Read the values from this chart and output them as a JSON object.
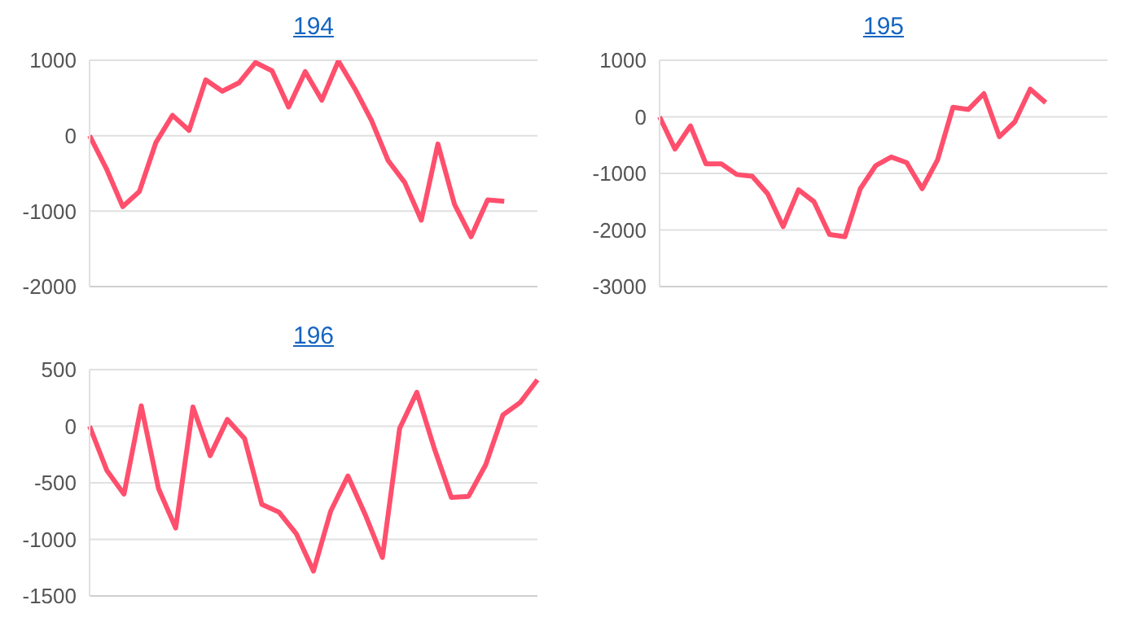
{
  "chart_data": [
    {
      "type": "line",
      "title": "194",
      "categories": [
        null,
        null,
        null,
        null,
        null,
        null,
        null,
        null,
        null,
        null,
        null,
        null,
        null,
        null,
        null,
        null,
        null,
        null,
        null,
        null,
        null,
        null,
        null,
        null,
        null,
        null,
        null,
        null
      ],
      "series": [
        {
          "color": "#ff4f6d",
          "values": [
            0,
            -430,
            -940,
            -740,
            -90,
            270,
            70,
            740,
            590,
            700,
            970,
            860,
            380,
            850,
            470,
            990,
            620,
            200,
            -330,
            -620,
            -1120,
            -110,
            -910,
            -1340,
            -850,
            -870,
            null,
            null
          ]
        }
      ],
      "ylim": [
        -2000,
        1000
      ],
      "yticks": [
        -2000,
        -1000,
        0,
        1000
      ],
      "grid": "y",
      "marker": "none",
      "line_style": "solid",
      "tick_labels": "y"
    },
    {
      "type": "line",
      "title": "195",
      "categories": [
        null,
        null,
        null,
        null,
        null,
        null,
        null,
        null,
        null,
        null,
        null,
        null,
        null,
        null,
        null,
        null,
        null,
        null,
        null,
        null,
        null,
        null,
        null,
        null,
        null,
        null,
        null,
        null,
        null,
        null
      ],
      "series": [
        {
          "color": "#ff4f6d",
          "values": [
            0,
            -570,
            -160,
            -830,
            -830,
            -1020,
            -1050,
            -1360,
            -1940,
            -1290,
            -1500,
            -2080,
            -2120,
            -1270,
            -860,
            -710,
            -810,
            -1270,
            -760,
            170,
            130,
            410,
            -350,
            -90,
            490,
            250,
            null,
            null,
            null,
            null
          ]
        }
      ],
      "ylim": [
        -3000,
        1000
      ],
      "yticks": [
        -3000,
        -2000,
        -1000,
        0,
        1000
      ],
      "grid": "y",
      "marker": "none",
      "line_style": "solid",
      "tick_labels": "y"
    },
    {
      "type": "line",
      "title": "196",
      "categories": [
        null,
        null,
        null,
        null,
        null,
        null,
        null,
        null,
        null,
        null,
        null,
        null,
        null,
        null,
        null,
        null,
        null,
        null,
        null,
        null,
        null,
        null,
        null,
        null,
        null,
        null,
        null
      ],
      "series": [
        {
          "color": "#ff4f6d",
          "values": [
            0,
            -390,
            -600,
            180,
            -550,
            -900,
            170,
            -260,
            60,
            -110,
            -690,
            -760,
            -950,
            -1280,
            -750,
            -440,
            -780,
            -1160,
            -20,
            300,
            -190,
            -630,
            -620,
            -340,
            100,
            210,
            410
          ]
        }
      ],
      "ylim": [
        -1500,
        500
      ],
      "yticks": [
        -1500,
        -1000,
        -500,
        0,
        500
      ],
      "grid": "y",
      "marker": "none",
      "line_style": "solid",
      "tick_labels": "y"
    }
  ]
}
